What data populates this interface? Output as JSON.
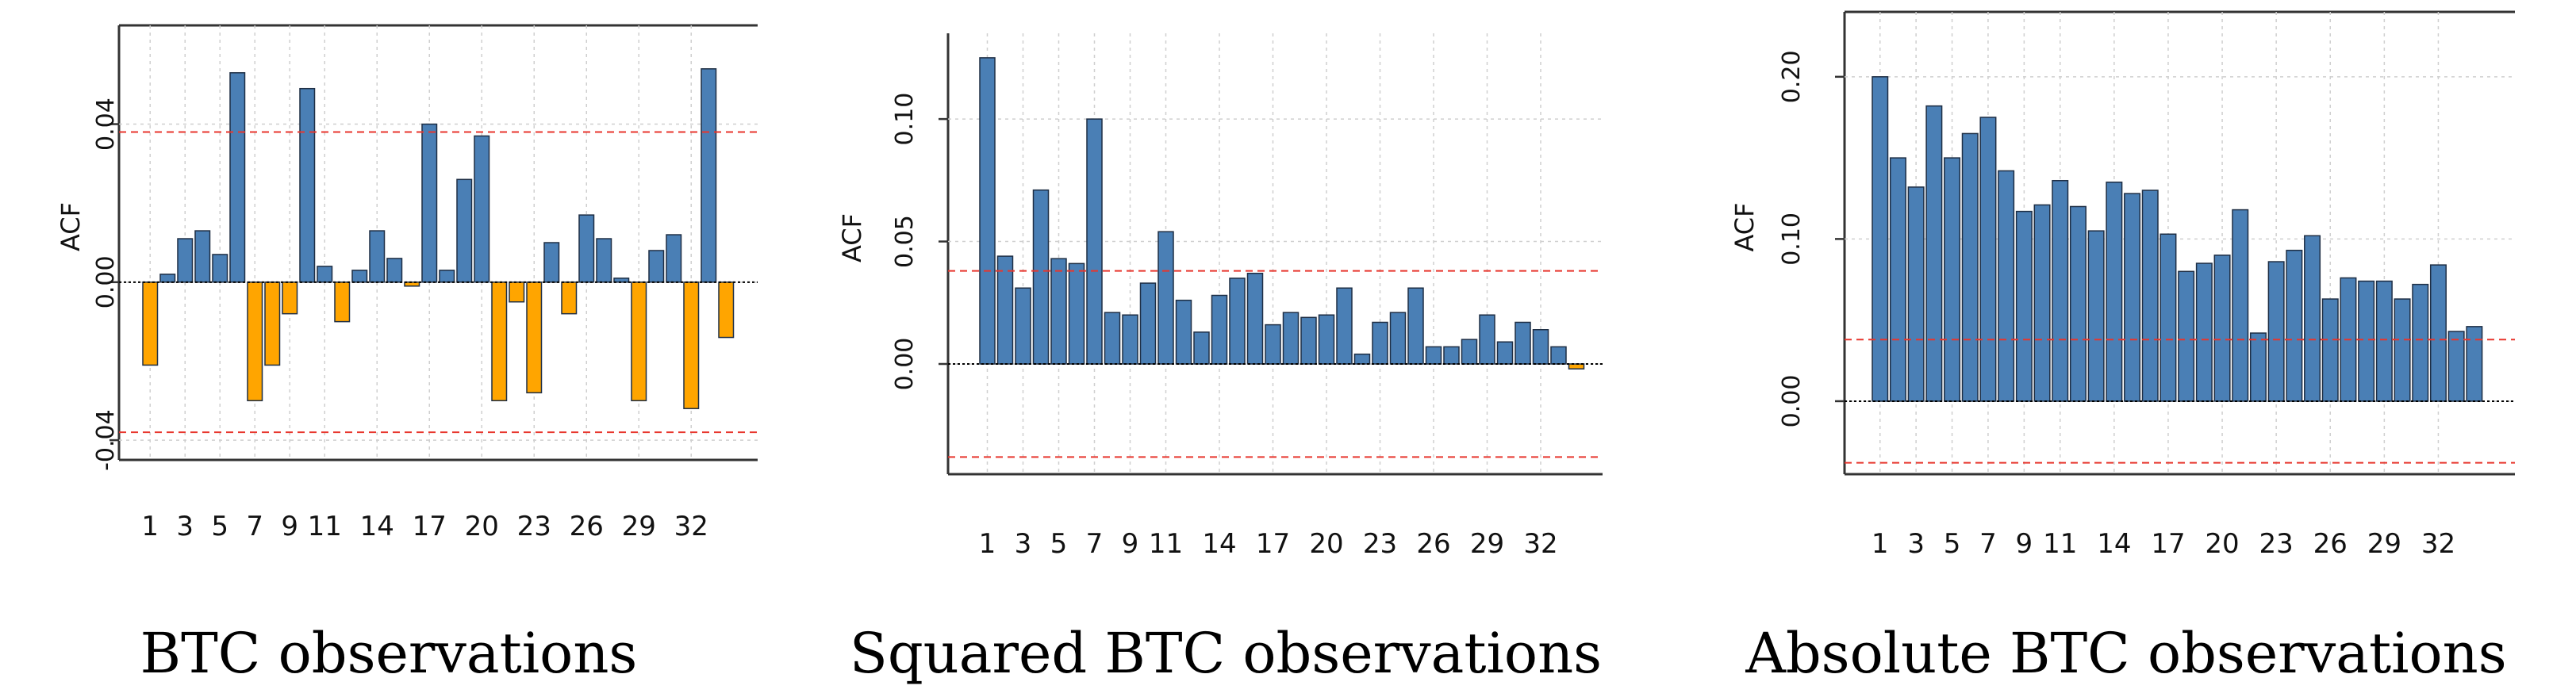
{
  "colors": {
    "positive": "#4a7fb5",
    "negative": "#ffa500",
    "ci": "#e8362d",
    "grid": "#cfcfcf",
    "axis": "#333333"
  },
  "chart_data": [
    {
      "type": "bar",
      "title": "BTC observations",
      "ylabel": "ACF",
      "ylim": [
        -0.045,
        0.065
      ],
      "yticks": [
        -0.04,
        0.0,
        0.04
      ],
      "ytick_labels": [
        "-0.04",
        "0.00",
        "0.04"
      ],
      "x_tick_labels": [
        "1",
        "3",
        "5",
        "7",
        "9",
        "11",
        "14",
        "17",
        "20",
        "23",
        "26",
        "29",
        "32"
      ],
      "x_tick_lags": [
        1,
        3,
        5,
        7,
        9,
        11,
        14,
        17,
        20,
        23,
        26,
        29,
        32
      ],
      "ci": [
        0.038,
        -0.038
      ],
      "lags": [
        1,
        2,
        3,
        4,
        5,
        6,
        7,
        8,
        9,
        10,
        11,
        12,
        13,
        14,
        15,
        16,
        17,
        18,
        19,
        20,
        21,
        22,
        23,
        24,
        25,
        26,
        27,
        28,
        29,
        30,
        31,
        32,
        33,
        34
      ],
      "values": [
        -0.021,
        0.002,
        0.011,
        0.013,
        0.007,
        0.053,
        -0.03,
        -0.021,
        -0.008,
        0.049,
        0.004,
        -0.01,
        0.003,
        0.013,
        0.006,
        -0.001,
        0.04,
        0.003,
        0.026,
        0.037,
        -0.03,
        -0.005,
        -0.028,
        0.01,
        -0.008,
        0.017,
        0.011,
        0.001,
        -0.03,
        0.008,
        0.012,
        -0.032,
        0.054,
        -0.014
      ]
    },
    {
      "type": "bar",
      "title": "Squared BTC observations",
      "ylabel": "ACF",
      "ylim": [
        -0.045,
        0.135
      ],
      "yticks": [
        0.0,
        0.05,
        0.1
      ],
      "ytick_labels": [
        "0.00",
        "0.05",
        "0.10"
      ],
      "x_tick_labels": [
        "1",
        "3",
        "5",
        "7",
        "9",
        "11",
        "14",
        "17",
        "20",
        "23",
        "26",
        "29",
        "32"
      ],
      "x_tick_lags": [
        1,
        3,
        5,
        7,
        9,
        11,
        14,
        17,
        20,
        23,
        26,
        29,
        32
      ],
      "ci": [
        0.038,
        -0.038
      ],
      "lags": [
        1,
        2,
        3,
        4,
        5,
        6,
        7,
        8,
        9,
        10,
        11,
        12,
        13,
        14,
        15,
        16,
        17,
        18,
        19,
        20,
        21,
        22,
        23,
        24,
        25,
        26,
        27,
        28,
        29,
        30,
        31,
        32,
        33,
        34
      ],
      "values": [
        0.125,
        0.044,
        0.031,
        0.071,
        0.043,
        0.041,
        0.1,
        0.021,
        0.02,
        0.033,
        0.054,
        0.026,
        0.013,
        0.028,
        0.035,
        0.037,
        0.016,
        0.021,
        0.019,
        0.02,
        0.031,
        0.004,
        0.017,
        0.021,
        0.031,
        0.007,
        0.007,
        0.01,
        0.02,
        0.009,
        0.017,
        0.014,
        0.007,
        -0.002
      ]
    },
    {
      "type": "bar",
      "title": "Absolute BTC observations",
      "ylabel": "ACF",
      "ylim": [
        -0.045,
        0.24
      ],
      "yticks": [
        0.0,
        0.1,
        0.2
      ],
      "ytick_labels": [
        "0.00",
        "0.10",
        "0.20"
      ],
      "x_tick_labels": [
        "1",
        "3",
        "5",
        "7",
        "9",
        "11",
        "14",
        "17",
        "20",
        "23",
        "26",
        "29",
        "32"
      ],
      "x_tick_lags": [
        1,
        3,
        5,
        7,
        9,
        11,
        14,
        17,
        20,
        23,
        26,
        29,
        32
      ],
      "ci": [
        0.038,
        -0.038
      ],
      "lags": [
        1,
        2,
        3,
        4,
        5,
        6,
        7,
        8,
        9,
        10,
        11,
        12,
        13,
        14,
        15,
        16,
        17,
        18,
        19,
        20,
        21,
        22,
        23,
        24,
        25,
        26,
        27,
        28,
        29,
        30,
        31,
        32,
        33,
        34
      ],
      "values": [
        0.2,
        0.15,
        0.132,
        0.182,
        0.15,
        0.165,
        0.175,
        0.142,
        0.117,
        0.121,
        0.136,
        0.12,
        0.105,
        0.135,
        0.128,
        0.13,
        0.103,
        0.08,
        0.085,
        0.09,
        0.118,
        0.042,
        0.086,
        0.093,
        0.102,
        0.063,
        0.076,
        0.074,
        0.074,
        0.063,
        0.072,
        0.084,
        0.043,
        0.046
      ]
    }
  ]
}
